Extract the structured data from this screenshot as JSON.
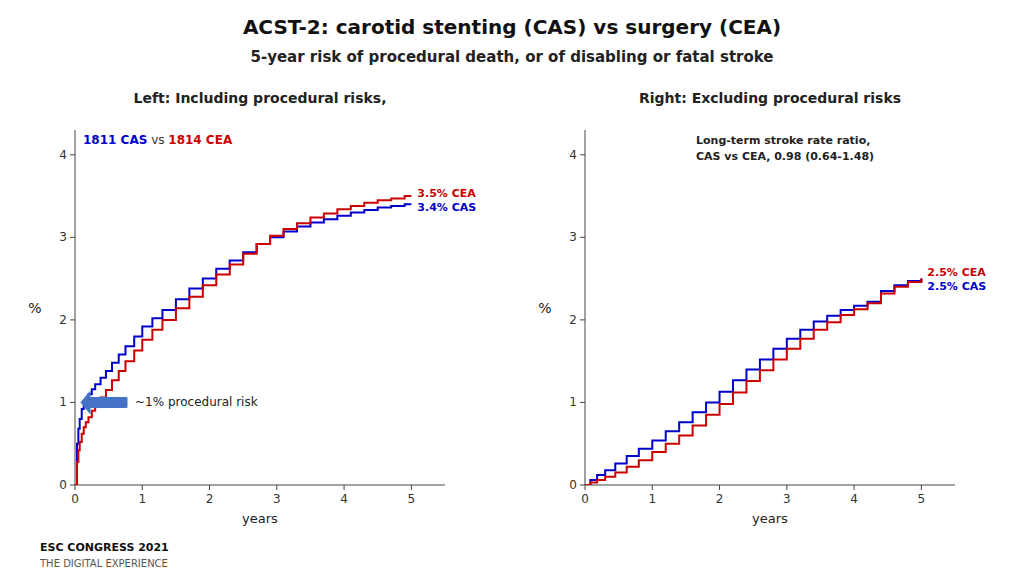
{
  "title": "ACST-2: carotid stenting (CAS) vs surgery (CEA)",
  "subtitle": "5-year risk of procedural death, or of disabling or fatal stroke",
  "footer": "ESC CONGRESS 2021",
  "footer_sub": "THE DIGITAL EXPERIENCE",
  "chart_data": [
    {
      "type": "step",
      "title": "Left: Including procedural risks,",
      "xlabel": "years",
      "ylabel": "%",
      "xlim": [
        0,
        5.5
      ],
      "ylim": [
        0,
        4.3
      ],
      "xticks": [
        0,
        1,
        2,
        3,
        4,
        5
      ],
      "yticks": [
        0,
        1,
        2,
        3,
        4
      ],
      "grid": false,
      "legend": "upper left",
      "legend_separator": "vs",
      "x": [
        0.0,
        0.03,
        0.05,
        0.07,
        0.1,
        0.13,
        0.16,
        0.2,
        0.25,
        0.3,
        0.38,
        0.46,
        0.55,
        0.65,
        0.75,
        0.88,
        1.0,
        1.15,
        1.3,
        1.5,
        1.7,
        1.9,
        2.1,
        2.3,
        2.5,
        2.7,
        2.9,
        3.1,
        3.3,
        3.5,
        3.7,
        3.9,
        4.1,
        4.3,
        4.5,
        4.7,
        4.9,
        5.0
      ],
      "series": [
        {
          "name": "1811 CAS",
          "color": "#0000cc",
          "end_label": "3.4% CAS",
          "values": [
            0.0,
            0.5,
            0.68,
            0.8,
            0.92,
            0.98,
            1.05,
            1.1,
            1.16,
            1.22,
            1.3,
            1.38,
            1.48,
            1.58,
            1.68,
            1.8,
            1.92,
            2.02,
            2.12,
            2.25,
            2.38,
            2.5,
            2.62,
            2.72,
            2.82,
            2.92,
            3.0,
            3.07,
            3.13,
            3.18,
            3.22,
            3.26,
            3.3,
            3.33,
            3.36,
            3.38,
            3.4,
            3.4
          ]
        },
        {
          "name": "1814 CEA",
          "color": "#cc0000",
          "end_label": "3.5% CEA",
          "values": [
            0.0,
            0.28,
            0.42,
            0.52,
            0.62,
            0.7,
            0.76,
            0.82,
            0.9,
            0.97,
            1.06,
            1.15,
            1.27,
            1.38,
            1.5,
            1.63,
            1.76,
            1.88,
            2.0,
            2.14,
            2.28,
            2.42,
            2.55,
            2.67,
            2.8,
            2.92,
            3.02,
            3.1,
            3.17,
            3.24,
            3.29,
            3.34,
            3.38,
            3.42,
            3.45,
            3.47,
            3.5,
            3.5
          ]
        }
      ],
      "annotations": [
        {
          "text": "~1% procedural risk",
          "y": 1.0,
          "color": "#4472c4"
        }
      ]
    },
    {
      "type": "step",
      "title": "Right: Excluding procedural risks",
      "xlabel": "years",
      "ylabel": "%",
      "xlim": [
        0,
        5.5
      ],
      "ylim": [
        0,
        4.3
      ],
      "xticks": [
        0,
        1,
        2,
        3,
        4,
        5
      ],
      "yticks": [
        0,
        1,
        2,
        3,
        4
      ],
      "grid": false,
      "x": [
        0.0,
        0.08,
        0.18,
        0.3,
        0.45,
        0.62,
        0.8,
        1.0,
        1.2,
        1.4,
        1.6,
        1.8,
        2.0,
        2.2,
        2.4,
        2.6,
        2.8,
        3.0,
        3.2,
        3.4,
        3.6,
        3.8,
        4.0,
        4.2,
        4.4,
        4.6,
        4.8,
        5.0
      ],
      "series": [
        {
          "color": "#0000cc",
          "end_label": "2.5% CAS",
          "values": [
            0.0,
            0.06,
            0.12,
            0.18,
            0.26,
            0.35,
            0.44,
            0.54,
            0.65,
            0.76,
            0.88,
            1.0,
            1.13,
            1.27,
            1.4,
            1.52,
            1.65,
            1.77,
            1.88,
            1.98,
            2.05,
            2.12,
            2.17,
            2.22,
            2.35,
            2.42,
            2.47,
            2.5
          ]
        },
        {
          "color": "#cc0000",
          "end_label": "2.5% CEA",
          "values": [
            0.0,
            0.03,
            0.06,
            0.1,
            0.15,
            0.22,
            0.3,
            0.4,
            0.5,
            0.6,
            0.72,
            0.85,
            0.98,
            1.12,
            1.26,
            1.39,
            1.52,
            1.65,
            1.77,
            1.88,
            1.97,
            2.06,
            2.13,
            2.2,
            2.32,
            2.4,
            2.46,
            2.5
          ]
        }
      ],
      "annotations": [
        {
          "text": "Long-term stroke rate ratio,"
        },
        {
          "text": "CAS vs CEA, 0.98 (0.64-1.48)"
        }
      ]
    }
  ]
}
